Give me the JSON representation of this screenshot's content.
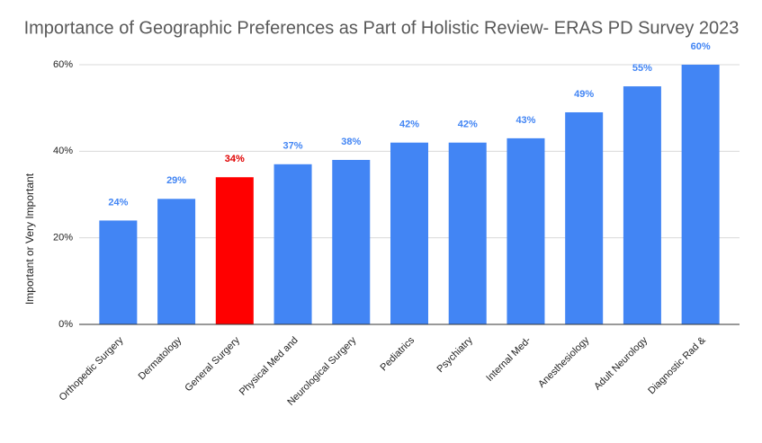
{
  "chart_data": {
    "type": "bar",
    "title": "Importance of Geographic Preferences as Part of Holistic Review- ERAS PD Survey 2023",
    "y_label": "Important or Very Important",
    "categories": [
      "Orthopedic Surgery",
      "Dermatology",
      "General Surgery",
      "Physical Med and",
      "Neurological Surgery",
      "Pediatrics",
      "Psychiatry",
      "Internal Med-",
      "Anesthesiology",
      "Adult Neurology",
      "Diagnostic Rad &"
    ],
    "values": [
      24,
      29,
      34,
      37,
      38,
      42,
      42,
      43,
      49,
      55,
      60
    ],
    "value_labels": [
      "24%",
      "29%",
      "34%",
      "37%",
      "38%",
      "42%",
      "42%",
      "43%",
      "49%",
      "55%",
      "60%"
    ],
    "colors": [
      "#4285f4",
      "#4285f4",
      "#ff0000",
      "#4285f4",
      "#4285f4",
      "#4285f4",
      "#4285f4",
      "#4285f4",
      "#4285f4",
      "#4285f4",
      "#4285f4"
    ],
    "ylim": [
      0,
      60
    ],
    "yticks": [
      {
        "value": 0,
        "label": "0%"
      },
      {
        "value": 20,
        "label": "20%"
      },
      {
        "value": 40,
        "label": "40%"
      },
      {
        "value": 60,
        "label": "60%"
      }
    ],
    "grid": true
  }
}
